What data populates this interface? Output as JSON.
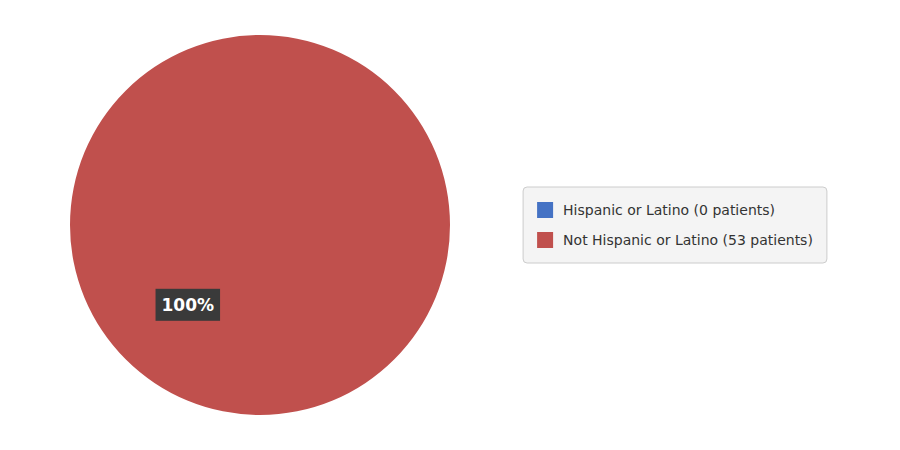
{
  "chart_data": {
    "type": "pie",
    "categories": [
      "Hispanic or Latino (0 patients)",
      "Not Hispanic or Latino (53 patients)"
    ],
    "values": [
      1e-06,
      53
    ],
    "colors": [
      "#4472C4",
      "#C0504D"
    ],
    "annotations": [
      "100%"
    ],
    "legend": "right"
  }
}
